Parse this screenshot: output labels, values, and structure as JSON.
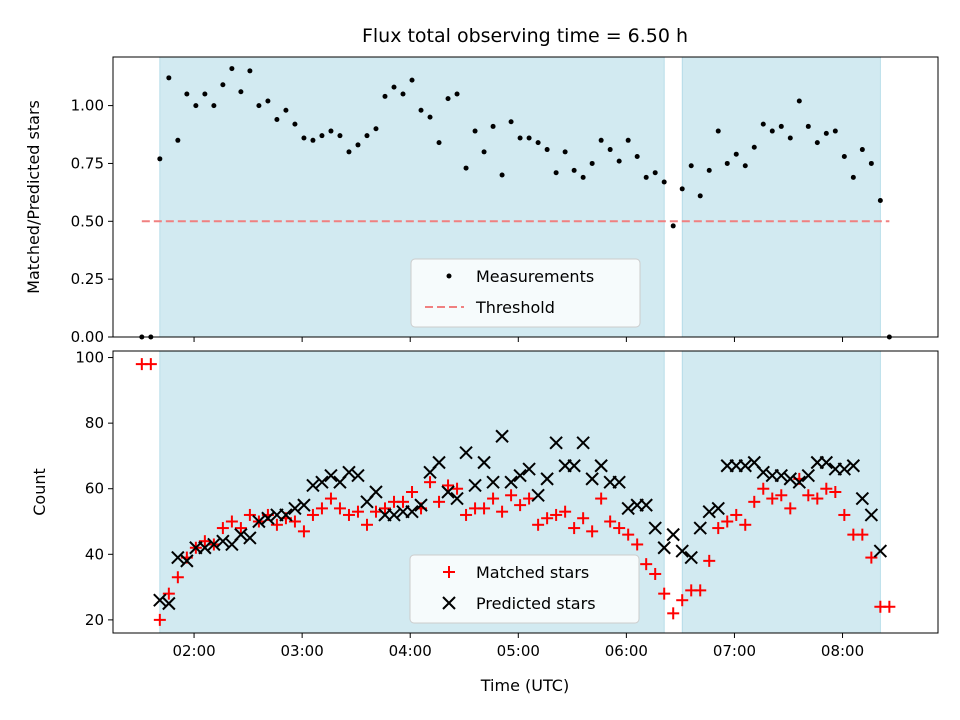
{
  "chart_data": [
    {
      "type": "scatter",
      "panel": "top",
      "title": "Flux total observing time = 6.50 h",
      "xlabel": "",
      "ylabel": "Matched/Predicted stars",
      "ylim": [
        0,
        1.21
      ],
      "yticks": [
        0.0,
        0.25,
        0.5,
        0.75,
        1.0
      ],
      "ytick_labels": [
        "0.00",
        "0.25",
        "0.50",
        "0.75",
        "1.00"
      ],
      "xlim": [
        "01:15",
        "08:53"
      ],
      "observing_windows": [
        [
          "01:41",
          "06:21"
        ],
        [
          "06:31",
          "08:21"
        ]
      ],
      "window_color": "#d2eaf1",
      "threshold": {
        "name": "Threshold",
        "value": 0.5,
        "x_range": [
          "01:31",
          "08:26"
        ],
        "color": "#f08080",
        "style": "dashed"
      },
      "legend": {
        "placement": "lower-center",
        "entries": [
          "Measurements",
          "Threshold"
        ]
      },
      "series": [
        {
          "name": "Measurements",
          "color": "#000000",
          "marker": "dot",
          "points": [
            [
              "01:31",
              0.0
            ],
            [
              "01:36",
              0.0
            ],
            [
              "01:41",
              0.77
            ],
            [
              "01:46",
              1.12
            ],
            [
              "01:51",
              0.85
            ],
            [
              "01:56",
              1.05
            ],
            [
              "02:01",
              1.0
            ],
            [
              "02:06",
              1.05
            ],
            [
              "02:11",
              1.0
            ],
            [
              "02:16",
              1.09
            ],
            [
              "02:21",
              1.16
            ],
            [
              "02:26",
              1.06
            ],
            [
              "02:31",
              1.15
            ],
            [
              "02:36",
              1.0
            ],
            [
              "02:41",
              1.02
            ],
            [
              "02:46",
              0.94
            ],
            [
              "02:51",
              0.98
            ],
            [
              "02:56",
              0.92
            ],
            [
              "03:01",
              0.86
            ],
            [
              "03:06",
              0.85
            ],
            [
              "03:11",
              0.87
            ],
            [
              "03:16",
              0.89
            ],
            [
              "03:21",
              0.87
            ],
            [
              "03:26",
              0.8
            ],
            [
              "03:31",
              0.83
            ],
            [
              "03:36",
              0.87
            ],
            [
              "03:41",
              0.9
            ],
            [
              "03:46",
              1.04
            ],
            [
              "03:51",
              1.08
            ],
            [
              "03:56",
              1.05
            ],
            [
              "04:01",
              1.11
            ],
            [
              "04:06",
              0.98
            ],
            [
              "04:11",
              0.95
            ],
            [
              "04:16",
              0.84
            ],
            [
              "04:21",
              1.03
            ],
            [
              "04:26",
              1.05
            ],
            [
              "04:31",
              0.73
            ],
            [
              "04:36",
              0.89
            ],
            [
              "04:41",
              0.8
            ],
            [
              "04:46",
              0.91
            ],
            [
              "04:51",
              0.7
            ],
            [
              "04:56",
              0.93
            ],
            [
              "05:01",
              0.86
            ],
            [
              "05:06",
              0.86
            ],
            [
              "05:11",
              0.84
            ],
            [
              "05:16",
              0.81
            ],
            [
              "05:21",
              0.71
            ],
            [
              "05:26",
              0.8
            ],
            [
              "05:31",
              0.72
            ],
            [
              "05:36",
              0.69
            ],
            [
              "05:41",
              0.75
            ],
            [
              "05:46",
              0.85
            ],
            [
              "05:51",
              0.81
            ],
            [
              "05:56",
              0.76
            ],
            [
              "06:01",
              0.85
            ],
            [
              "06:06",
              0.78
            ],
            [
              "06:11",
              0.69
            ],
            [
              "06:16",
              0.71
            ],
            [
              "06:21",
              0.67
            ],
            [
              "06:26",
              0.48
            ],
            [
              "06:31",
              0.64
            ],
            [
              "06:36",
              0.74
            ],
            [
              "06:41",
              0.61
            ],
            [
              "06:46",
              0.72
            ],
            [
              "06:51",
              0.89
            ],
            [
              "06:56",
              0.75
            ],
            [
              "07:01",
              0.79
            ],
            [
              "07:06",
              0.74
            ],
            [
              "07:11",
              0.82
            ],
            [
              "07:16",
              0.92
            ],
            [
              "07:21",
              0.89
            ],
            [
              "07:26",
              0.91
            ],
            [
              "07:31",
              0.86
            ],
            [
              "07:36",
              1.02
            ],
            [
              "07:41",
              0.91
            ],
            [
              "07:46",
              0.84
            ],
            [
              "07:51",
              0.88
            ],
            [
              "07:56",
              0.89
            ],
            [
              "08:01",
              0.78
            ],
            [
              "08:06",
              0.69
            ],
            [
              "08:11",
              0.81
            ],
            [
              "08:16",
              0.75
            ],
            [
              "08:21",
              0.59
            ],
            [
              "08:26",
              0.0
            ]
          ]
        }
      ]
    },
    {
      "type": "scatter",
      "panel": "bottom",
      "title": "",
      "xlabel": "Time (UTC)",
      "ylabel": "Count",
      "ylim": [
        16,
        102
      ],
      "yticks": [
        20,
        40,
        60,
        80,
        100
      ],
      "xlim": [
        "01:15",
        "08:53"
      ],
      "xticks": [
        "02:00",
        "03:00",
        "04:00",
        "05:00",
        "06:00",
        "07:00",
        "08:00"
      ],
      "observing_windows": [
        [
          "01:41",
          "06:21"
        ],
        [
          "06:31",
          "08:21"
        ]
      ],
      "window_color": "#d2eaf1",
      "legend": {
        "placement": "lower-center",
        "entries": [
          "Matched stars",
          "Predicted stars"
        ]
      },
      "series": [
        {
          "name": "Matched stars",
          "color": "#ff0000",
          "marker": "plus",
          "points": [
            [
              "01:31",
              98
            ],
            [
              "01:36",
              98
            ],
            [
              "01:41",
              20
            ],
            [
              "01:46",
              28
            ],
            [
              "01:51",
              33
            ],
            [
              "01:56",
              39
            ],
            [
              "02:01",
              42
            ],
            [
              "02:06",
              44
            ],
            [
              "02:11",
              43
            ],
            [
              "02:16",
              48
            ],
            [
              "02:21",
              50
            ],
            [
              "02:26",
              48
            ],
            [
              "02:31",
              52
            ],
            [
              "02:36",
              50
            ],
            [
              "02:41",
              52
            ],
            [
              "02:46",
              49
            ],
            [
              "02:51",
              51
            ],
            [
              "02:56",
              50
            ],
            [
              "03:01",
              47
            ],
            [
              "03:06",
              52
            ],
            [
              "03:11",
              54
            ],
            [
              "03:16",
              57
            ],
            [
              "03:21",
              54
            ],
            [
              "03:26",
              52
            ],
            [
              "03:31",
              53
            ],
            [
              "03:36",
              49
            ],
            [
              "03:41",
              53
            ],
            [
              "03:46",
              54
            ],
            [
              "03:51",
              56
            ],
            [
              "03:56",
              56
            ],
            [
              "04:01",
              59
            ],
            [
              "04:06",
              54
            ],
            [
              "04:11",
              62
            ],
            [
              "04:16",
              56
            ],
            [
              "04:21",
              61
            ],
            [
              "04:26",
              60
            ],
            [
              "04:31",
              52
            ],
            [
              "04:36",
              54
            ],
            [
              "04:41",
              54
            ],
            [
              "04:46",
              57
            ],
            [
              "04:51",
              53
            ],
            [
              "04:56",
              58
            ],
            [
              "05:01",
              55
            ],
            [
              "05:06",
              57
            ],
            [
              "05:11",
              49
            ],
            [
              "05:16",
              51
            ],
            [
              "05:21",
              52
            ],
            [
              "05:26",
              53
            ],
            [
              "05:31",
              48
            ],
            [
              "05:36",
              51
            ],
            [
              "05:41",
              47
            ],
            [
              "05:46",
              57
            ],
            [
              "05:51",
              50
            ],
            [
              "05:56",
              48
            ],
            [
              "06:01",
              46
            ],
            [
              "06:06",
              43
            ],
            [
              "06:11",
              37
            ],
            [
              "06:16",
              34
            ],
            [
              "06:21",
              28
            ],
            [
              "06:26",
              22
            ],
            [
              "06:31",
              26
            ],
            [
              "06:36",
              29
            ],
            [
              "06:41",
              29
            ],
            [
              "06:46",
              38
            ],
            [
              "06:51",
              48
            ],
            [
              "06:56",
              50
            ],
            [
              "07:01",
              52
            ],
            [
              "07:06",
              49
            ],
            [
              "07:11",
              56
            ],
            [
              "07:16",
              60
            ],
            [
              "07:21",
              57
            ],
            [
              "07:26",
              58
            ],
            [
              "07:31",
              54
            ],
            [
              "07:36",
              63
            ],
            [
              "07:41",
              58
            ],
            [
              "07:46",
              57
            ],
            [
              "07:51",
              60
            ],
            [
              "07:56",
              59
            ],
            [
              "08:01",
              52
            ],
            [
              "08:06",
              46
            ],
            [
              "08:11",
              46
            ],
            [
              "08:16",
              39
            ],
            [
              "08:21",
              24
            ],
            [
              "08:26",
              24
            ]
          ]
        },
        {
          "name": "Predicted stars",
          "color": "#000000",
          "marker": "x",
          "points": [
            [
              "01:41",
              26
            ],
            [
              "01:46",
              25
            ],
            [
              "01:51",
              39
            ],
            [
              "01:56",
              38
            ],
            [
              "02:01",
              42
            ],
            [
              "02:06",
              42
            ],
            [
              "02:11",
              43
            ],
            [
              "02:16",
              44
            ],
            [
              "02:21",
              43
            ],
            [
              "02:26",
              46
            ],
            [
              "02:31",
              45
            ],
            [
              "02:36",
              50
            ],
            [
              "02:41",
              51
            ],
            [
              "02:46",
              52
            ],
            [
              "02:51",
              52
            ],
            [
              "02:56",
              54
            ],
            [
              "03:01",
              55
            ],
            [
              "03:06",
              61
            ],
            [
              "03:11",
              62
            ],
            [
              "03:16",
              64
            ],
            [
              "03:21",
              62
            ],
            [
              "03:26",
              65
            ],
            [
              "03:31",
              64
            ],
            [
              "03:36",
              56
            ],
            [
              "03:41",
              59
            ],
            [
              "03:46",
              52
            ],
            [
              "03:51",
              52
            ],
            [
              "03:56",
              53
            ],
            [
              "04:01",
              53
            ],
            [
              "04:06",
              55
            ],
            [
              "04:11",
              65
            ],
            [
              "04:16",
              68
            ],
            [
              "04:21",
              59
            ],
            [
              "04:26",
              57
            ],
            [
              "04:31",
              71
            ],
            [
              "04:36",
              61
            ],
            [
              "04:41",
              68
            ],
            [
              "04:46",
              62
            ],
            [
              "04:51",
              76
            ],
            [
              "04:56",
              62
            ],
            [
              "05:01",
              64
            ],
            [
              "05:06",
              66
            ],
            [
              "05:11",
              58
            ],
            [
              "05:16",
              63
            ],
            [
              "05:21",
              74
            ],
            [
              "05:26",
              67
            ],
            [
              "05:31",
              67
            ],
            [
              "05:36",
              74
            ],
            [
              "05:41",
              63
            ],
            [
              "05:46",
              67
            ],
            [
              "05:51",
              62
            ],
            [
              "05:56",
              62
            ],
            [
              "06:01",
              54
            ],
            [
              "06:06",
              55
            ],
            [
              "06:11",
              55
            ],
            [
              "06:16",
              48
            ],
            [
              "06:21",
              42
            ],
            [
              "06:26",
              46
            ],
            [
              "06:31",
              41
            ],
            [
              "06:36",
              39
            ],
            [
              "06:41",
              48
            ],
            [
              "06:46",
              53
            ],
            [
              "06:51",
              54
            ],
            [
              "06:56",
              67
            ],
            [
              "07:01",
              67
            ],
            [
              "07:06",
              67
            ],
            [
              "07:11",
              68
            ],
            [
              "07:16",
              65
            ],
            [
              "07:21",
              64
            ],
            [
              "07:26",
              64
            ],
            [
              "07:31",
              63
            ],
            [
              "07:36",
              62
            ],
            [
              "07:41",
              64
            ],
            [
              "07:46",
              68
            ],
            [
              "07:51",
              68
            ],
            [
              "07:56",
              66
            ],
            [
              "08:01",
              66
            ],
            [
              "08:06",
              67
            ],
            [
              "08:11",
              57
            ],
            [
              "08:16",
              52
            ],
            [
              "08:21",
              41
            ]
          ]
        }
      ]
    }
  ]
}
